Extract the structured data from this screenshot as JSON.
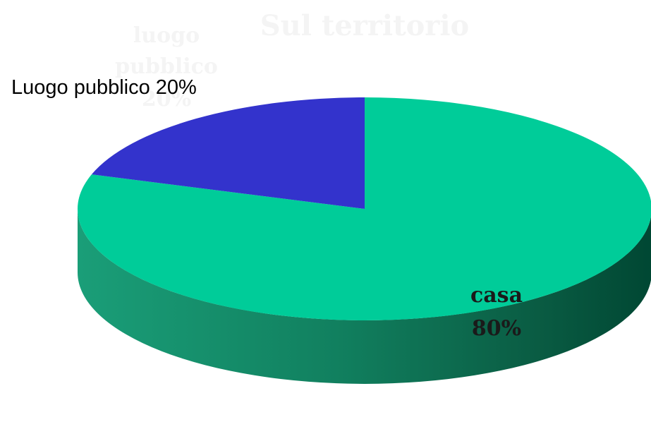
{
  "chart_data": {
    "type": "pie",
    "style": "3d",
    "title": "Sul territorio",
    "categories": [
      "Luogo pubblico",
      "casa"
    ],
    "values": [
      20,
      80
    ],
    "unit": "%",
    "slices": [
      {
        "label": "Luogo pubblico 20%",
        "category": "Luogo pubblico",
        "value": 20,
        "color": "#3333cc"
      },
      {
        "label_lines": [
          "casa",
          "80%"
        ],
        "category": "casa",
        "value": 80,
        "color": "#00cc99"
      }
    ],
    "ghost_label_lines": [
      "luogo",
      "pubblico",
      "20%"
    ]
  },
  "colors": {
    "casa_top": "#00cc99",
    "casa_side_light": "#1a9e78",
    "casa_side_dark": "#004733",
    "pubblico_top": "#3333cc"
  }
}
